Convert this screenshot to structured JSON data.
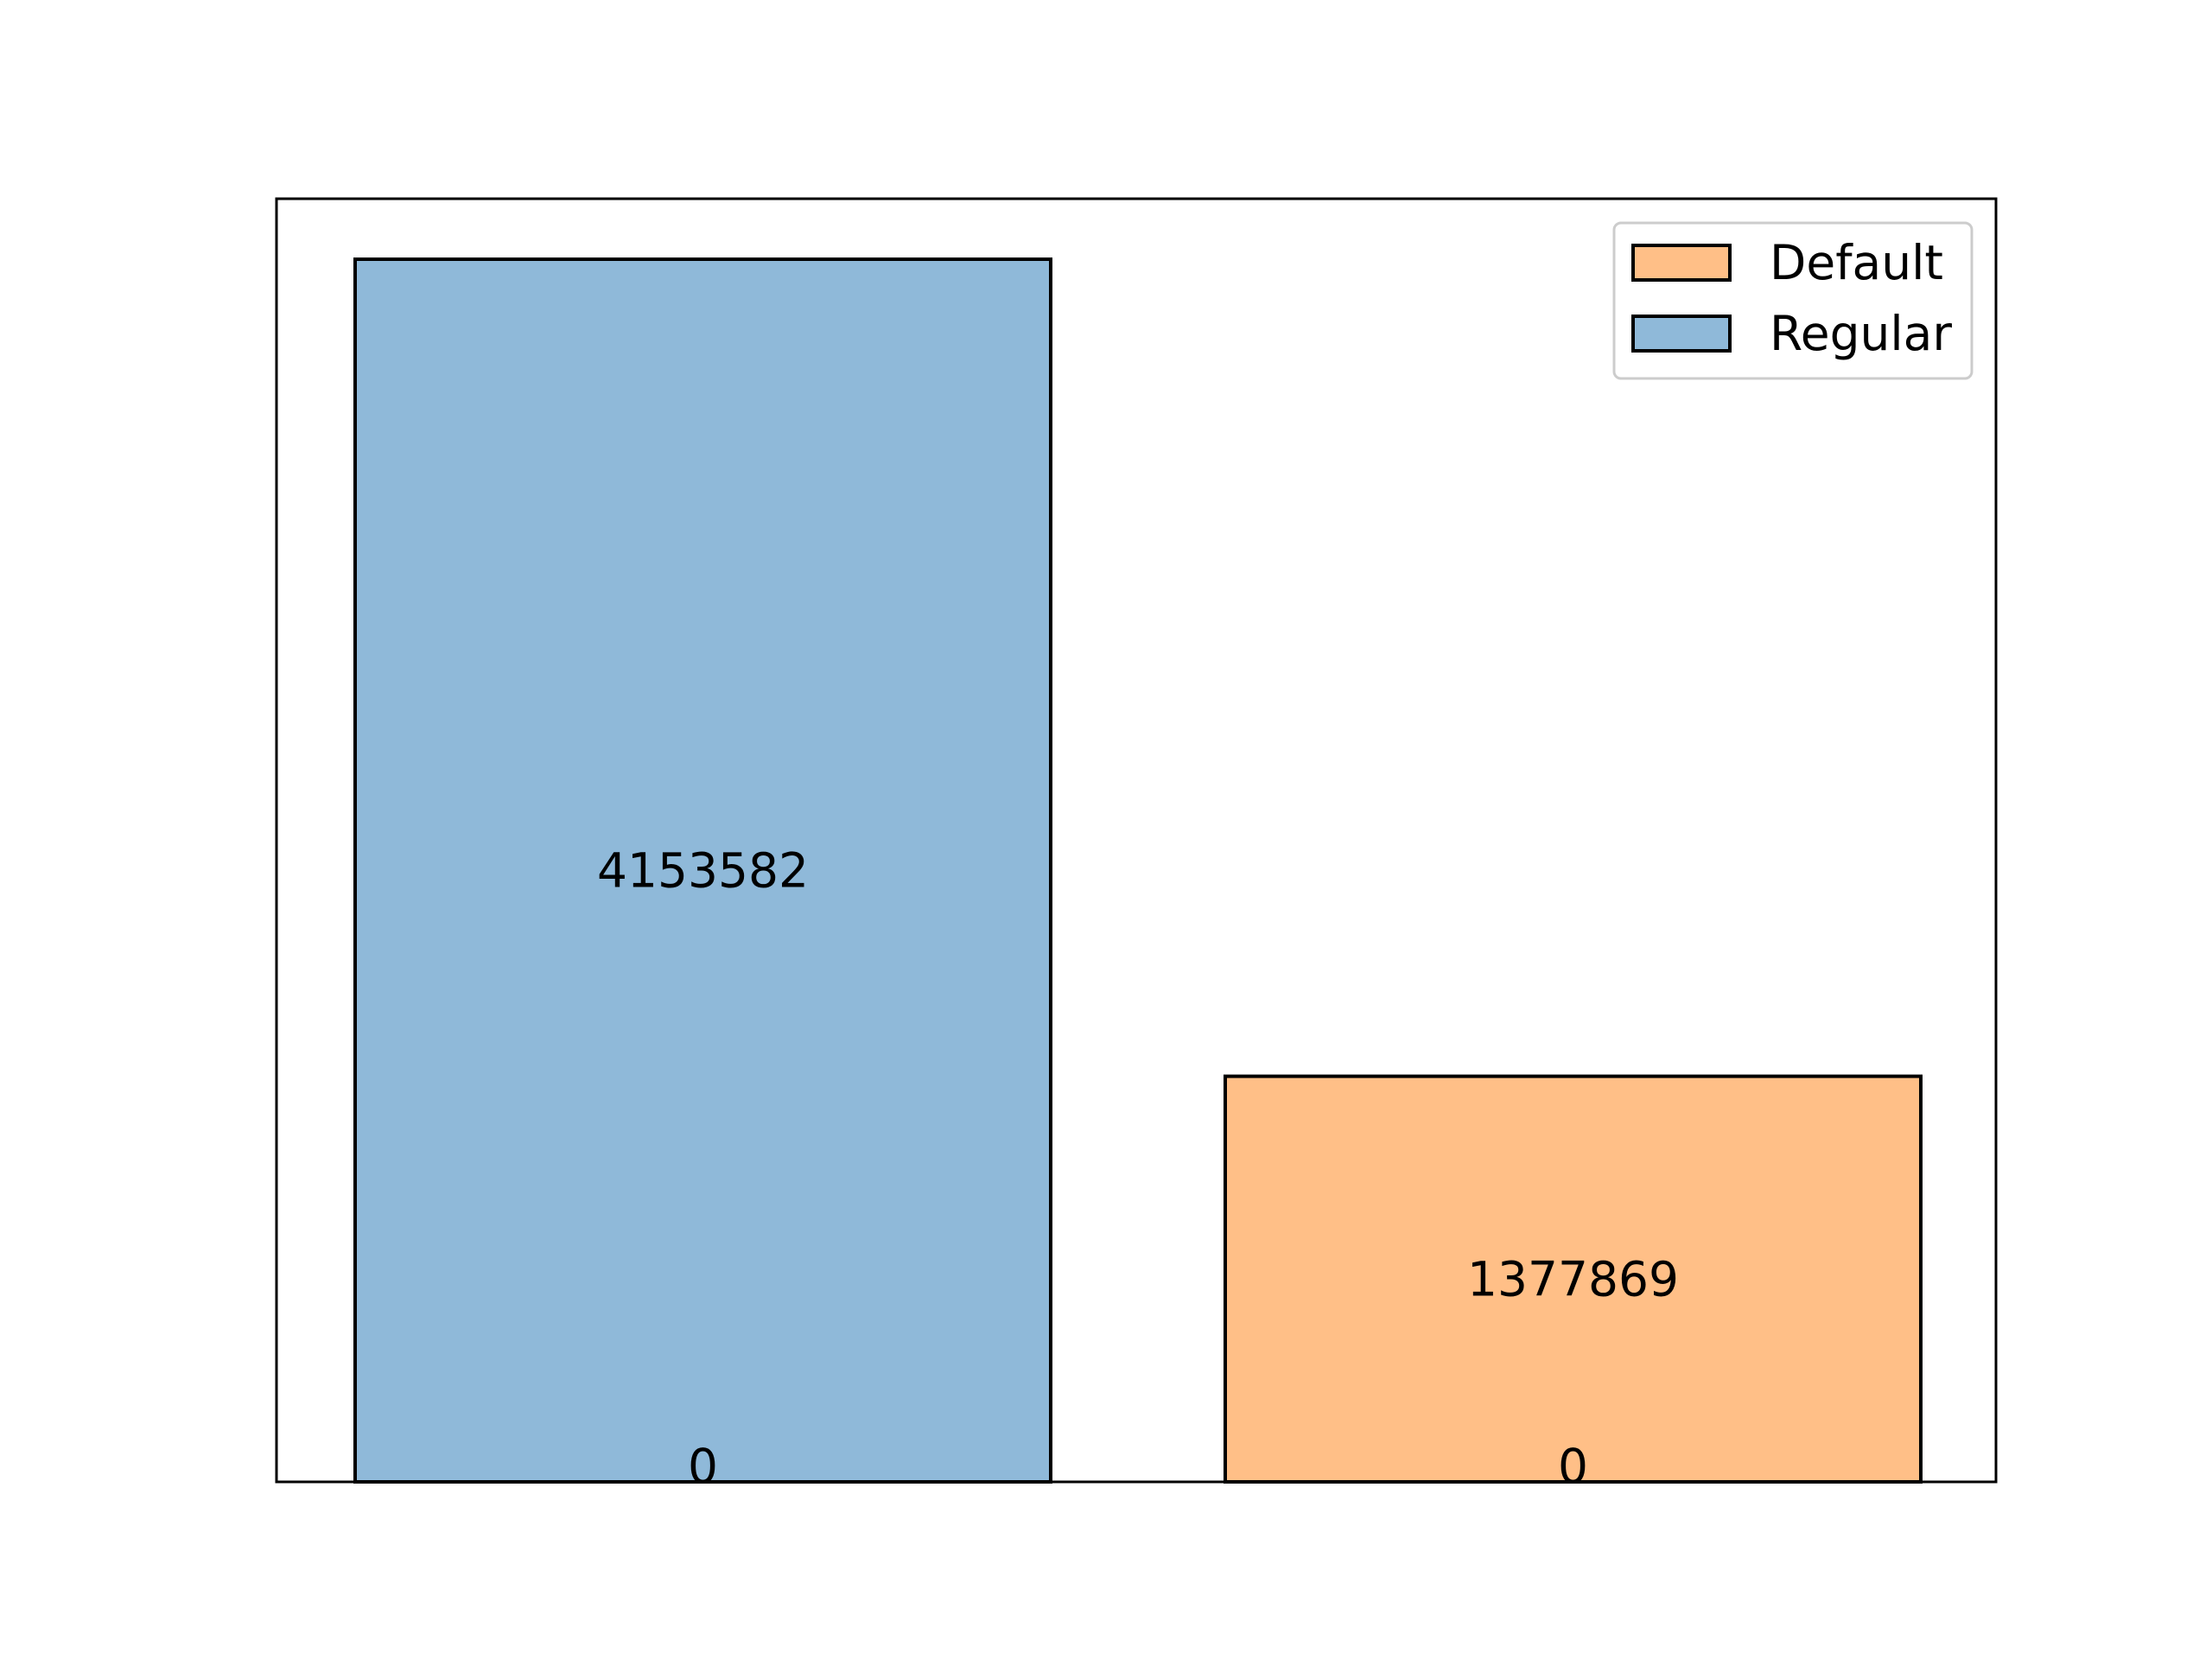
{
  "chart_data": {
    "type": "bar",
    "categories": [
      "Regular",
      "Default"
    ],
    "values": [
      4153582,
      1377869
    ],
    "stacked_base_labels": [
      "0",
      "0"
    ],
    "value_labels": [
      "4153582",
      "1377869"
    ],
    "colors": [
      "#8fb9d9",
      "#ffbf87"
    ],
    "title": "",
    "xlabel": "",
    "ylabel": "",
    "x_ticks": false,
    "y_ticks": false,
    "grid": false,
    "legend_placement": "top-right",
    "legend": [
      {
        "name": "Default",
        "color": "#ffbf87"
      },
      {
        "name": "Regular",
        "color": "#8fb9d9"
      }
    ]
  }
}
